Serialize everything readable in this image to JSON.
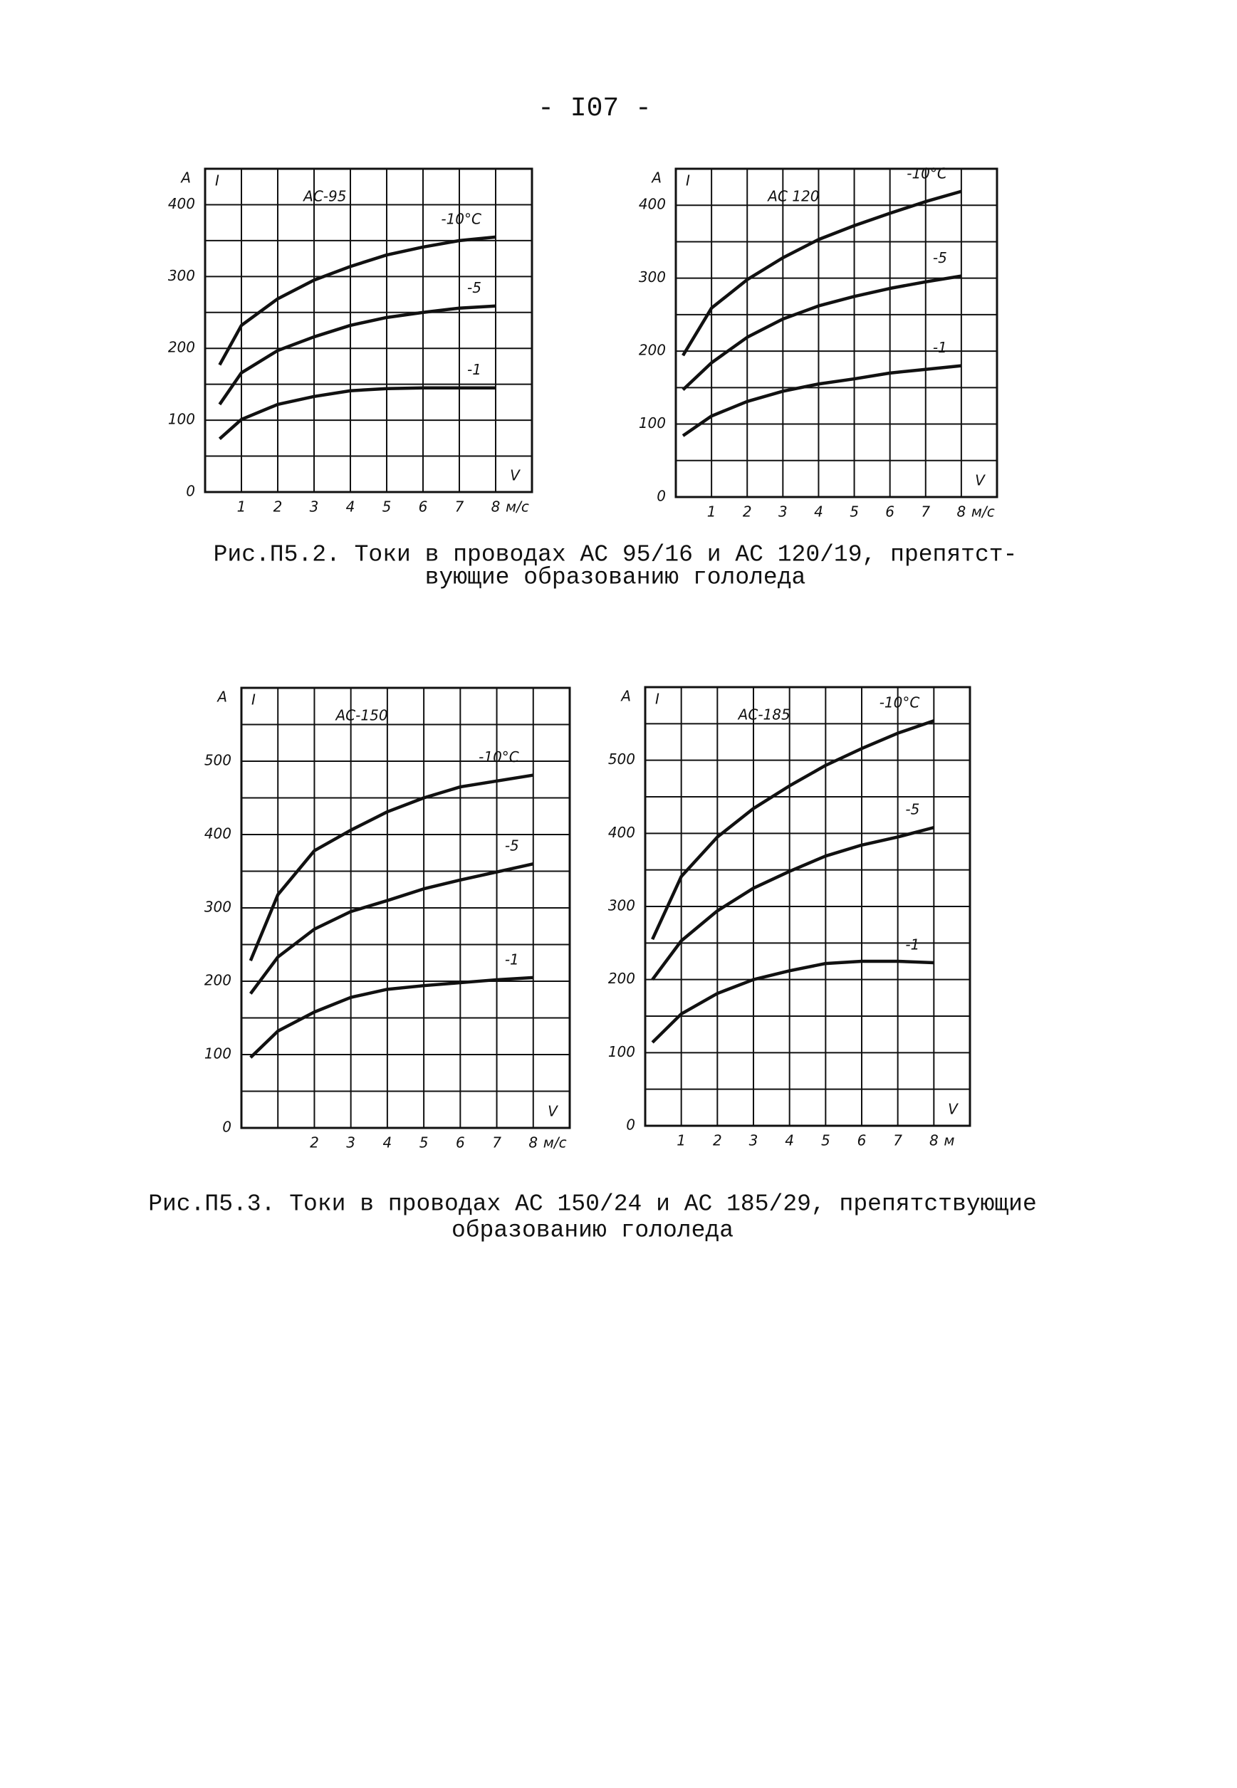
{
  "page_number": "- I07 -",
  "chart_data": [
    {
      "type": "line",
      "title": "АС-95",
      "y_unit": "А",
      "y_label": "I",
      "x_label": "V",
      "x_unit": "м/с",
      "x": [
        0.4,
        1,
        2,
        3,
        4,
        5,
        6,
        7,
        8
      ],
      "series": [
        {
          "name": "-10°C",
          "color": "#111",
          "values": [
            177,
            232,
            269,
            295,
            314,
            330,
            341,
            350,
            355
          ]
        },
        {
          "name": "-5",
          "color": "#111",
          "values": [
            122,
            166,
            197,
            216,
            232,
            243,
            250,
            256,
            259
          ]
        },
        {
          "name": "-1",
          "color": "#111",
          "values": [
            74,
            101,
            122,
            133,
            141,
            144,
            145,
            145,
            145
          ]
        }
      ],
      "xlim": [
        0,
        9
      ],
      "xticks": [
        1,
        2,
        3,
        4,
        5,
        6,
        7,
        8
      ],
      "xgrid": [
        0,
        1,
        2,
        3,
        4,
        5,
        6,
        7,
        8,
        9
      ],
      "ylim": [
        0,
        450
      ],
      "yticks": [
        0,
        100,
        200,
        300,
        400
      ],
      "ygrid": [
        0,
        50,
        100,
        150,
        200,
        250,
        300,
        350,
        400,
        450
      ]
    },
    {
      "type": "line",
      "title": "АС 120",
      "y_unit": "А",
      "y_label": "I",
      "x_label": "V",
      "x_unit": "м/с",
      "x": [
        0.2,
        1,
        2,
        3,
        4,
        5,
        6,
        7,
        8
      ],
      "series": [
        {
          "name": "-10°C",
          "color": "#111",
          "values": [
            194,
            259,
            298,
            328,
            353,
            372,
            389,
            405,
            419
          ]
        },
        {
          "name": "-5",
          "color": "#111",
          "values": [
            147,
            184,
            219,
            244,
            262,
            275,
            286,
            295,
            303
          ]
        },
        {
          "name": "-1",
          "color": "#111",
          "values": [
            84,
            111,
            131,
            145,
            155,
            162,
            170,
            175,
            180
          ]
        }
      ],
      "xlim": [
        0,
        9
      ],
      "xticks": [
        1,
        2,
        3,
        4,
        5,
        6,
        7,
        8
      ],
      "xgrid": [
        0,
        1,
        2,
        3,
        4,
        5,
        6,
        7,
        8,
        9
      ],
      "ylim": [
        0,
        450
      ],
      "yticks": [
        0,
        100,
        200,
        300,
        400
      ],
      "ygrid": [
        0,
        50,
        100,
        150,
        200,
        250,
        300,
        350,
        400,
        450
      ]
    },
    {
      "type": "line",
      "title": "АС-150",
      "y_unit": "А",
      "y_label": "I",
      "x_label": "V",
      "x_unit": "м/с",
      "x": [
        0.25,
        1,
        2,
        3,
        4,
        5,
        6,
        7,
        8
      ],
      "series": [
        {
          "name": "-10°C",
          "color": "#111",
          "values": [
            228,
            318,
            378,
            406,
            431,
            450,
            465,
            473,
            481
          ]
        },
        {
          "name": "-5",
          "color": "#111",
          "values": [
            183,
            233,
            271,
            295,
            310,
            326,
            338,
            349,
            360
          ]
        },
        {
          "name": "-1",
          "color": "#111",
          "values": [
            96,
            132,
            158,
            178,
            189,
            194,
            198,
            202,
            205
          ]
        }
      ],
      "xlim": [
        0,
        9
      ],
      "xticks": [
        2,
        3,
        4,
        5,
        6,
        7,
        8
      ],
      "xgrid": [
        0,
        1,
        2,
        3,
        4,
        5,
        6,
        7,
        8,
        9
      ],
      "ylim": [
        0,
        600
      ],
      "yticks": [
        0,
        100,
        200,
        300,
        400,
        500
      ],
      "ygrid": [
        0,
        50,
        100,
        150,
        200,
        250,
        300,
        350,
        400,
        450,
        500,
        550,
        600
      ]
    },
    {
      "type": "line",
      "title": "АС-185",
      "y_unit": "А",
      "y_label": "I",
      "x_label": "V",
      "x_unit": "м",
      "x": [
        0.2,
        1,
        2,
        3,
        4,
        5,
        6,
        7,
        8
      ],
      "series": [
        {
          "name": "-10°C",
          "color": "#111",
          "values": [
            255,
            341,
            395,
            434,
            465,
            493,
            516,
            537,
            554
          ]
        },
        {
          "name": "-5",
          "color": "#111",
          "values": [
            200,
            253,
            294,
            325,
            348,
            369,
            384,
            395,
            408
          ]
        },
        {
          "name": "-1",
          "color": "#111",
          "values": [
            114,
            153,
            181,
            200,
            212,
            222,
            225,
            225,
            223
          ]
        }
      ],
      "xlim": [
        0,
        9
      ],
      "xticks": [
        1,
        2,
        3,
        4,
        5,
        6,
        7,
        8
      ],
      "xgrid": [
        0,
        1,
        2,
        3,
        4,
        5,
        6,
        7,
        8,
        9
      ],
      "ylim": [
        0,
        600
      ],
      "yticks": [
        0,
        100,
        200,
        300,
        400,
        500
      ],
      "ygrid": [
        0,
        50,
        100,
        150,
        200,
        250,
        300,
        350,
        400,
        450,
        500,
        550,
        600
      ]
    }
  ],
  "captions": [
    [
      "Рис.П5.2. Токи в проводах АС 95/16 и АС 120/19, препятст-",
      "вующие образованию гололеда"
    ],
    [
      "Рис.П5.3. Токи в проводах АС 150/24 и АС 185/29, препятствующие",
      "образованию гололеда"
    ]
  ]
}
